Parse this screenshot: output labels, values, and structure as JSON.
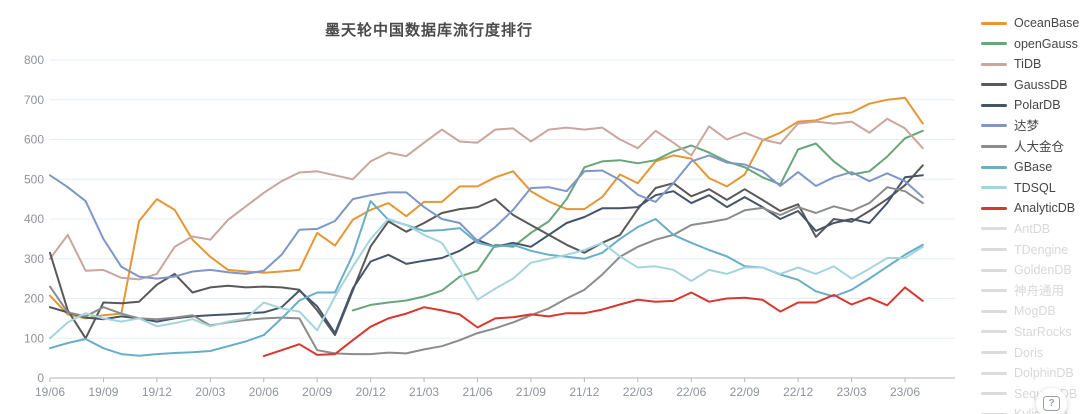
{
  "ui": {
    "help_icon": "?"
  },
  "chart_data": {
    "type": "line",
    "title": "墨天轮中国数据库流行度排行",
    "xlabel": "",
    "ylabel": "",
    "ylim": [
      0,
      800
    ],
    "y_ticks": [
      0,
      100,
      200,
      300,
      400,
      500,
      600,
      700,
      800
    ],
    "grid": "horizontal-only",
    "legend_position": "right",
    "x_tick_labels": [
      "19/06",
      "19/09",
      "19/12",
      "20/03",
      "20/06",
      "20/09",
      "20/12",
      "21/03",
      "21/06",
      "21/09",
      "21/12",
      "22/03",
      "22/06",
      "22/09",
      "22/12",
      "23/03",
      "23/06"
    ],
    "months": [
      "19/06",
      "19/07",
      "19/08",
      "19/09",
      "19/10",
      "19/11",
      "19/12",
      "20/01",
      "20/02",
      "20/03",
      "20/04",
      "20/05",
      "20/06",
      "20/07",
      "20/08",
      "20/09",
      "20/10",
      "20/11",
      "20/12",
      "21/01",
      "21/02",
      "21/03",
      "21/04",
      "21/05",
      "21/06",
      "21/07",
      "21/08",
      "21/09",
      "21/10",
      "21/11",
      "21/12",
      "22/01",
      "22/02",
      "22/03",
      "22/04",
      "22/05",
      "22/06",
      "22/07",
      "22/08",
      "22/09",
      "22/10",
      "22/11",
      "22/12",
      "23/01",
      "23/02",
      "23/03",
      "23/04",
      "23/05",
      "23/06",
      "23/07"
    ],
    "series": [
      {
        "name": "OceanBase",
        "color": "#E49735",
        "values": [
          207,
          160,
          150,
          158,
          162,
          395,
          450,
          423,
          348,
          305,
          272,
          268,
          265,
          268,
          272,
          365,
          333,
          398,
          423,
          440,
          407,
          443,
          443,
          482,
          482,
          505,
          520,
          470,
          444,
          425,
          425,
          455,
          512,
          490,
          545,
          560,
          552,
          503,
          482,
          512,
          598,
          617,
          645,
          648,
          663,
          668,
          690,
          700,
          705,
          640
        ]
      },
      {
        "name": "openGauss",
        "color": "#68A578",
        "values": [
          null,
          null,
          null,
          null,
          null,
          null,
          null,
          null,
          null,
          null,
          null,
          null,
          null,
          null,
          null,
          null,
          null,
          170,
          184,
          190,
          195,
          205,
          220,
          255,
          270,
          335,
          330,
          365,
          394,
          450,
          530,
          545,
          548,
          540,
          548,
          570,
          585,
          567,
          545,
          530,
          505,
          487,
          575,
          590,
          545,
          512,
          520,
          557,
          603,
          622
        ]
      },
      {
        "name": "TiDB",
        "color": "#C9A69E",
        "values": [
          300,
          360,
          270,
          272,
          252,
          248,
          262,
          330,
          356,
          348,
          398,
          432,
          466,
          495,
          517,
          520,
          510,
          500,
          545,
          567,
          558,
          592,
          625,
          595,
          592,
          625,
          628,
          595,
          625,
          630,
          625,
          630,
          600,
          578,
          622,
          592,
          560,
          633,
          600,
          617,
          600,
          590,
          640,
          645,
          640,
          645,
          617,
          652,
          628,
          578
        ]
      },
      {
        "name": "GaussDB",
        "color": "#595959",
        "values": [
          315,
          170,
          100,
          190,
          188,
          192,
          235,
          262,
          215,
          228,
          232,
          228,
          230,
          228,
          222,
          170,
          108,
          220,
          331,
          394,
          368,
          390,
          415,
          425,
          430,
          450,
          410,
          385,
          360,
          335,
          315,
          340,
          360,
          425,
          478,
          490,
          457,
          475,
          448,
          475,
          448,
          420,
          437,
          355,
          400,
          393,
          420,
          450,
          485,
          535
        ]
      },
      {
        "name": "PolarDB",
        "color": "#44546A",
        "values": [
          178,
          165,
          152,
          148,
          155,
          150,
          142,
          150,
          155,
          158,
          160,
          163,
          165,
          178,
          220,
          180,
          113,
          225,
          293,
          310,
          287,
          295,
          302,
          320,
          347,
          330,
          340,
          330,
          360,
          390,
          405,
          427,
          427,
          430,
          460,
          470,
          440,
          460,
          430,
          455,
          430,
          400,
          420,
          370,
          390,
          400,
          390,
          440,
          505,
          510
        ]
      },
      {
        "name": "达梦",
        "color": "#7E97C8",
        "values": [
          510,
          480,
          445,
          350,
          280,
          255,
          250,
          255,
          268,
          272,
          266,
          262,
          270,
          310,
          373,
          375,
          395,
          450,
          460,
          467,
          467,
          430,
          400,
          390,
          345,
          380,
          423,
          478,
          480,
          470,
          520,
          522,
          498,
          461,
          443,
          490,
          545,
          560,
          542,
          537,
          520,
          483,
          518,
          483,
          505,
          518,
          495,
          515,
          495,
          455
        ]
      },
      {
        "name": "人大金仓",
        "color": "#8C8C8C",
        "values": [
          230,
          165,
          155,
          178,
          162,
          150,
          148,
          152,
          158,
          132,
          140,
          146,
          150,
          152,
          150,
          70,
          62,
          60,
          60,
          64,
          62,
          72,
          80,
          95,
          113,
          125,
          140,
          158,
          175,
          200,
          222,
          260,
          305,
          330,
          348,
          360,
          385,
          392,
          400,
          422,
          428,
          410,
          430,
          415,
          432,
          420,
          440,
          480,
          470,
          440
        ]
      },
      {
        "name": "GBase",
        "color": "#68AEC8",
        "values": [
          75,
          88,
          98,
          75,
          60,
          56,
          60,
          63,
          65,
          68,
          80,
          92,
          108,
          150,
          195,
          215,
          215,
          310,
          445,
          398,
          385,
          370,
          372,
          377,
          340,
          330,
          335,
          320,
          310,
          305,
          300,
          315,
          350,
          380,
          400,
          360,
          340,
          322,
          306,
          281,
          278,
          260,
          247,
          218,
          205,
          222,
          250,
          280,
          310,
          335
        ]
      },
      {
        "name": "TDSQL",
        "color": "#A5D5DC",
        "values": [
          100,
          140,
          163,
          150,
          142,
          150,
          130,
          138,
          148,
          130,
          142,
          150,
          190,
          175,
          167,
          120,
          205,
          280,
          350,
          400,
          385,
          360,
          340,
          270,
          197,
          225,
          250,
          290,
          300,
          310,
          322,
          340,
          306,
          278,
          281,
          272,
          244,
          272,
          262,
          278,
          278,
          262,
          278,
          262,
          281,
          250,
          275,
          302,
          302,
          330
        ]
      },
      {
        "name": "AnalyticDB",
        "color": "#D7372E",
        "values": [
          null,
          null,
          null,
          null,
          null,
          null,
          null,
          null,
          null,
          null,
          null,
          null,
          55,
          70,
          85,
          58,
          60,
          95,
          129,
          150,
          162,
          178,
          170,
          160,
          127,
          150,
          153,
          160,
          155,
          163,
          163,
          172,
          185,
          197,
          192,
          194,
          215,
          192,
          200,
          202,
          197,
          167,
          190,
          190,
          209,
          185,
          202,
          183,
          228,
          194
        ]
      }
    ],
    "legend_disabled": [
      "AntDB",
      "TDengine",
      "GoldenDB",
      "神舟通用",
      "MogDB",
      "StarRocks",
      "Doris",
      "DolphinDB",
      "SequoiaDB",
      "Kyligence"
    ],
    "colors": {
      "grid": "#E7EDF4",
      "axis": "#B3B3B3",
      "axis_label": "#8E939C",
      "title": "#4A4A4A",
      "legend_active_text": "#464646",
      "legend_disabled_text": "#D8D8D8",
      "legend_disabled_swatch": "#DCDCDC"
    }
  }
}
